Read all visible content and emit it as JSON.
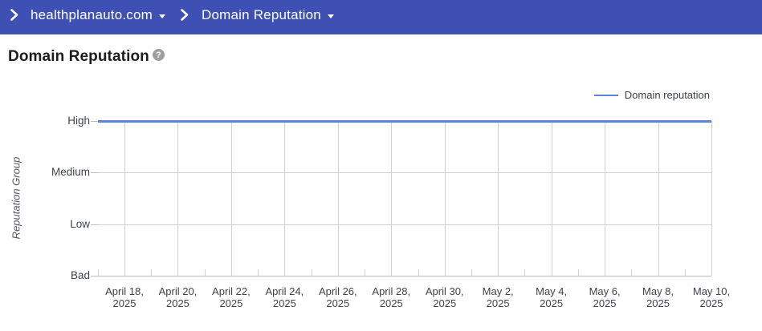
{
  "header": {
    "breadcrumbs": [
      {
        "label": "healthplanauto.com"
      },
      {
        "label": "Domain Reputation"
      }
    ]
  },
  "page": {
    "title": "Domain Reputation",
    "help_icon": "question-mark-circle"
  },
  "colors": {
    "app_bar": "#3e50b4",
    "series_line": "#5c85d6",
    "gridline": "#d0d0d0",
    "axis_baseline": "#bdbdbd",
    "help_icon": "#9e9e9e"
  },
  "chart_data": {
    "type": "line",
    "title": "",
    "xlabel": "",
    "ylabel": "Reputation Group",
    "y_categories": [
      "High",
      "Medium",
      "Low",
      "Bad"
    ],
    "categories": [
      "April 18, 2025",
      "April 20, 2025",
      "April 22, 2025",
      "April 24, 2025",
      "April 26, 2025",
      "April 28, 2025",
      "April 30, 2025",
      "May 2, 2025",
      "May 4, 2025",
      "May 6, 2025",
      "May 8, 2025",
      "May 10, 2025"
    ],
    "series": [
      {
        "name": "Domain reputation",
        "values": [
          "High",
          "High",
          "High",
          "High",
          "High",
          "High",
          "High",
          "High",
          "High",
          "High",
          "High",
          "High"
        ]
      }
    ],
    "legend": {
      "position": "top-right",
      "entries": [
        "Domain reputation"
      ]
    },
    "grid": true,
    "line_color": "#5c85d6"
  }
}
